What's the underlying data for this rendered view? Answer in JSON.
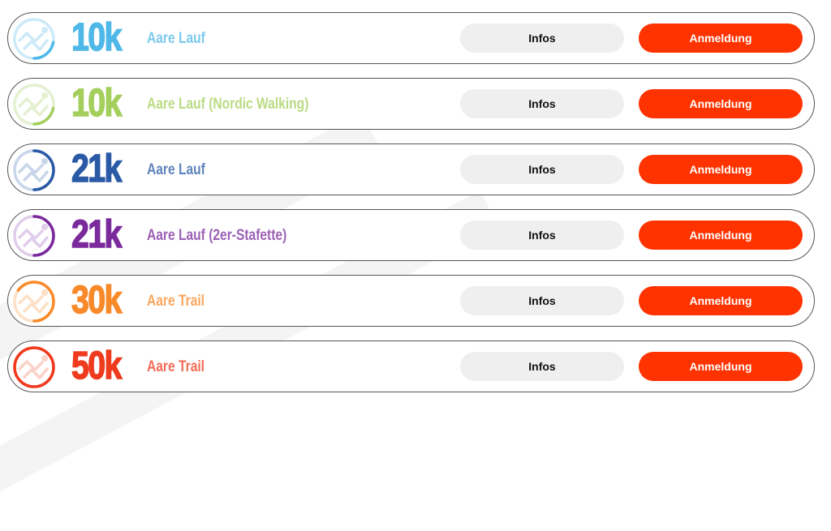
{
  "races": [
    {
      "distance": "10k",
      "name": "Aare Lauf",
      "color": "#4fb8e8",
      "light": "#cdeaf8",
      "progress": 0.22,
      "infos_label": "Infos",
      "register_label": "Anmeldung"
    },
    {
      "distance": "10k",
      "name": "Aare Lauf (Nordic Walking)",
      "color": "#a4cf5c",
      "light": "#e4f0d0",
      "progress": 0.22,
      "infos_label": "Infos",
      "register_label": "Anmeldung"
    },
    {
      "distance": "21k",
      "name": "Aare Lauf",
      "color": "#2a5aa6",
      "light": "#c9d6ea",
      "progress": 0.5,
      "infos_label": "Infos",
      "register_label": "Anmeldung"
    },
    {
      "distance": "21k",
      "name": "Aare Lauf (2er-Stafette)",
      "color": "#7b2a9c",
      "light": "#e0cdea",
      "progress": 0.5,
      "infos_label": "Infos",
      "register_label": "Anmeldung"
    },
    {
      "distance": "30k",
      "name": "Aare Trail",
      "color": "#f98a2a",
      "light": "#fde0c6",
      "progress": 0.65,
      "infos_label": "Infos",
      "register_label": "Anmeldung"
    },
    {
      "distance": "50k",
      "name": "Aare Trail",
      "color": "#f03a1e",
      "light": "#fbd2c8",
      "progress": 1.0,
      "infos_label": "Infos",
      "register_label": "Anmeldung"
    }
  ],
  "colors": {
    "register_button": "#ff3300",
    "infos_button": "#efefef"
  }
}
